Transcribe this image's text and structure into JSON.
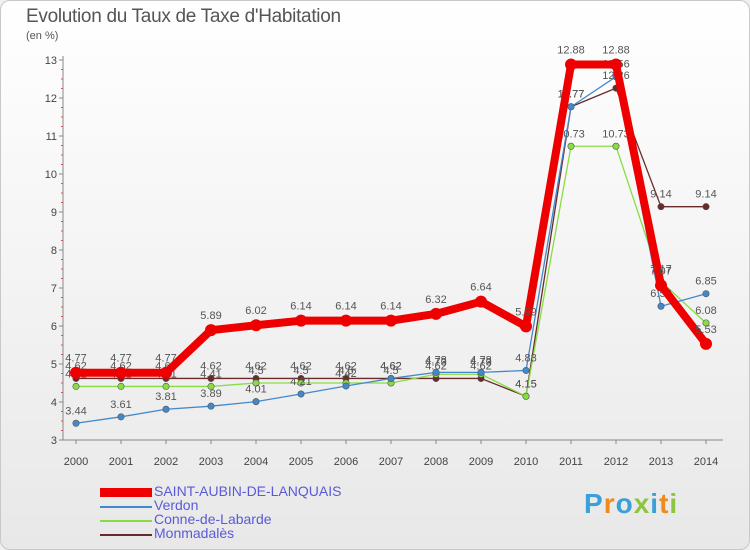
{
  "header": {
    "title": "Evolution du Taux de Taxe d'Habitation",
    "unit": "(en %)"
  },
  "logo": {
    "text": "Proxiti"
  },
  "chart_data": {
    "type": "line",
    "title": "Evolution du Taux de Taxe d'Habitation",
    "ylabel": "(en %)",
    "xlabel": "",
    "categories": [
      "2000",
      "2001",
      "2002",
      "2003",
      "2004",
      "2005",
      "2006",
      "2007",
      "2008",
      "2009",
      "2010",
      "2011",
      "2012",
      "2013",
      "2014"
    ],
    "ylim": [
      3,
      13
    ],
    "yticks": [
      3,
      4,
      5,
      6,
      7,
      8,
      9,
      10,
      11,
      12,
      13
    ],
    "grid": false,
    "legend_position": "bottom-left",
    "series": [
      {
        "name": "Monmadalès",
        "color": "#6b2a2a",
        "values": [
          4.62,
          4.62,
          4.62,
          4.62,
          4.62,
          4.62,
          4.62,
          4.62,
          4.62,
          4.62,
          4.15,
          11.77,
          12.26,
          9.14,
          9.14
        ],
        "labels": [
          "4.62",
          "4.62",
          "4.62",
          "4.62",
          "4.62",
          "4.62",
          "4.62",
          "4.62",
          "4.62",
          "4.62",
          "4.15",
          "11.77",
          "12.26",
          "9.14",
          "9.14"
        ]
      },
      {
        "name": "Conne-de-Labarde",
        "color": "#88dd44",
        "values": [
          4.41,
          4.41,
          4.41,
          4.41,
          4.5,
          4.5,
          4.5,
          4.5,
          4.73,
          4.73,
          4.15,
          10.73,
          10.73,
          7.17,
          6.08
        ],
        "labels": [
          "4.41",
          "4.41",
          "4.41",
          "4.41",
          "4.5",
          "4.5",
          "4.5",
          "4.5",
          "4.73",
          "4.73",
          "4.15",
          "10.73",
          "10.73",
          "7.17",
          "6.08"
        ]
      },
      {
        "name": "Verdon",
        "color": "#4488cc",
        "values": [
          3.44,
          3.61,
          3.81,
          3.89,
          4.01,
          4.21,
          4.42,
          4.62,
          4.78,
          4.78,
          4.83,
          11.77,
          12.56,
          6.52,
          6.85
        ],
        "labels": [
          "3.44",
          "3.61",
          "3.81",
          "3.89",
          "4.01",
          "4.21",
          "4.42",
          "4.62",
          "4.78",
          "4.78",
          "4.83",
          "11.77",
          "12.56",
          "6.52",
          "6.85"
        ]
      },
      {
        "name": "SAINT-AUBIN-DE-LANQUAIS",
        "color": "#ee0000",
        "values": [
          4.77,
          4.77,
          4.77,
          5.89,
          6.02,
          6.14,
          6.14,
          6.14,
          6.32,
          6.64,
          5.99,
          12.88,
          12.88,
          7.07,
          5.53
        ],
        "labels": [
          "4.77",
          "4.77",
          "4.77",
          "5.89",
          "6.02",
          "6.14",
          "6.14",
          "6.14",
          "6.32",
          "6.64",
          "5.99",
          "12.88",
          "12.88",
          "7.07",
          "5.53"
        ]
      }
    ],
    "legend": [
      "SAINT-AUBIN-DE-LANQUAIS",
      "Verdon",
      "Conne-de-Labarde",
      "Monmadalès"
    ]
  }
}
